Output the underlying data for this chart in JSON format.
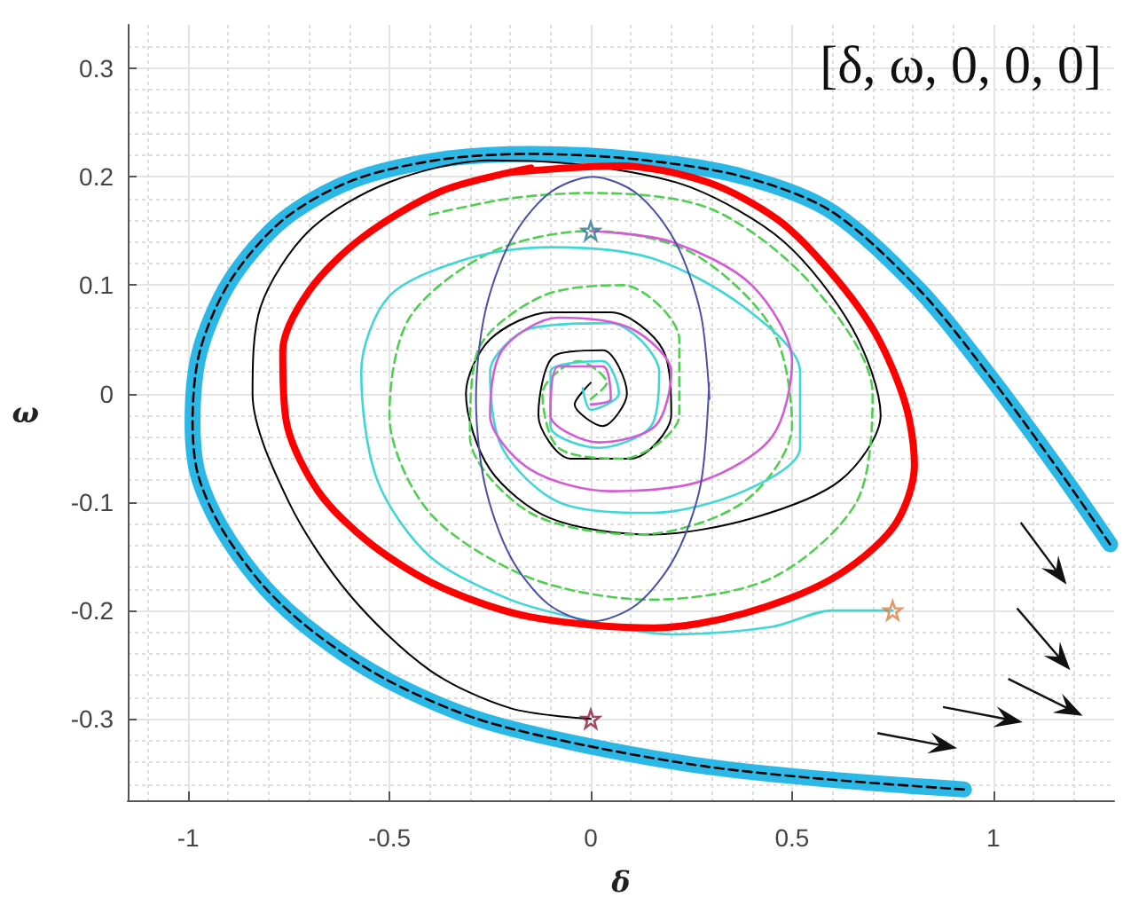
{
  "chart_data": {
    "type": "line",
    "xlabel": "δ",
    "ylabel": "ω",
    "annotations": [
      "[δ, ω, 0, 0, 0]"
    ],
    "xlim": [
      -1.15,
      1.3
    ],
    "ylim": [
      -0.375,
      0.34
    ],
    "xticks": [
      -1,
      -0.5,
      0,
      0.5,
      1
    ],
    "yticks": [
      -0.3,
      -0.2,
      -0.1,
      0,
      0.1,
      0.2,
      0.3
    ],
    "grid": true,
    "marker": "none",
    "series": [
      {
        "color": "#2bb8e6",
        "x": [
          1.29,
          1.169,
          0.993,
          0.818,
          0.598,
          0.378,
          0.114,
          -0.149,
          -0.369,
          -0.589,
          -0.765,
          -0.897,
          -0.971,
          -0.989,
          -0.976,
          -0.919,
          -0.809,
          -0.677,
          -0.501,
          -0.281,
          -0.018,
          0.29,
          0.598,
          0.927
        ],
        "values": [
          -0.139,
          -0.074,
          0.015,
          0.095,
          0.168,
          0.2,
          0.216,
          0.221,
          0.216,
          0.197,
          0.16,
          0.103,
          0.039,
          -0.026,
          -0.074,
          -0.123,
          -0.179,
          -0.223,
          -0.265,
          -0.3,
          -0.324,
          -0.344,
          -0.356,
          -0.365
        ]
      },
      {
        "color": "#000000",
        "line_style": "dashed",
        "x": [
          1.29,
          1.169,
          0.993,
          0.818,
          0.598,
          0.378,
          0.114,
          -0.149,
          -0.369,
          -0.589,
          -0.765,
          -0.897,
          -0.971,
          -0.989,
          -0.976,
          -0.919,
          -0.809,
          -0.677,
          -0.501,
          -0.281,
          -0.018,
          0.29,
          0.598,
          0.927
        ],
        "values": [
          -0.139,
          -0.074,
          0.015,
          0.095,
          0.168,
          0.2,
          0.216,
          0.221,
          0.216,
          0.197,
          0.16,
          0.103,
          0.039,
          -0.026,
          -0.074,
          -0.123,
          -0.179,
          -0.223,
          -0.265,
          -0.3,
          -0.324,
          -0.344,
          -0.356,
          -0.365
        ]
      },
      {
        "color": "#000000",
        "x": [
          0,
          -0.2,
          -0.4,
          -0.6,
          -0.75,
          -0.84,
          -0.82,
          -0.7,
          -0.5,
          -0.25,
          0,
          0.25,
          0.48,
          0.65,
          0.72,
          0.62,
          0.4,
          0.15,
          -0.1,
          -0.25,
          -0.31,
          -0.25,
          -0.1,
          0.05,
          0.18,
          0.2,
          0.1,
          -0.05,
          -0.13,
          -0.09,
          0.03,
          0.09,
          0.03,
          -0.04,
          0
        ],
        "values": [
          -0.3,
          -0.29,
          -0.255,
          -0.185,
          -0.1,
          0,
          0.08,
          0.15,
          0.195,
          0.215,
          0.21,
          0.19,
          0.14,
          0.06,
          -0.02,
          -0.08,
          -0.115,
          -0.13,
          -0.115,
          -0.07,
          0,
          0.05,
          0.075,
          0.075,
          0.04,
          -0.02,
          -0.06,
          -0.06,
          -0.02,
          0.035,
          0.04,
          0,
          -0.03,
          -0.01,
          0.01
        ]
      },
      {
        "color": "#4fcf4f",
        "line_style": "dashed",
        "x": [
          -0.4,
          -0.2,
          0,
          0.3,
          0.55,
          0.7,
          0.66,
          0.45,
          0.15,
          -0.15,
          -0.4,
          -0.5,
          -0.45,
          -0.25,
          0,
          0.25,
          0.45,
          0.5,
          0.38,
          0.12,
          -0.15,
          -0.3,
          -0.28,
          -0.12,
          0.08,
          0.22,
          0.22,
          0.08,
          -0.08,
          -0.12,
          -0.03,
          0.04,
          0
        ],
        "values": [
          0.165,
          0.18,
          0.185,
          0.17,
          0.1,
          0,
          -0.1,
          -0.17,
          -0.19,
          -0.17,
          -0.11,
          -0.02,
          0.07,
          0.13,
          0.15,
          0.13,
          0.06,
          -0.03,
          -0.1,
          -0.13,
          -0.11,
          -0.04,
          0.04,
          0.09,
          0.1,
          0.05,
          -0.02,
          -0.06,
          -0.05,
          0,
          0.03,
          0.01,
          -0.005
        ]
      },
      {
        "color": "#3fd6d6",
        "x": [
          0.75,
          0.6,
          0.45,
          0.2,
          0,
          -0.2,
          -0.4,
          -0.53,
          -0.57,
          -0.5,
          -0.3,
          -0.1,
          0.15,
          0.38,
          0.52,
          0.52,
          0.38,
          0.15,
          -0.08,
          -0.22,
          -0.25,
          -0.15,
          0.05,
          0.17,
          0.15,
          0.02,
          -0.1,
          -0.1,
          0.03,
          0.07,
          0,
          -0.02
        ],
        "values": [
          -0.2,
          -0.2,
          -0.215,
          -0.222,
          -0.21,
          -0.19,
          -0.15,
          -0.08,
          0.02,
          0.09,
          0.125,
          0.135,
          0.125,
          0.08,
          0.02,
          -0.05,
          -0.09,
          -0.11,
          -0.1,
          -0.05,
          0.02,
          0.06,
          0.065,
          0.02,
          -0.03,
          -0.05,
          -0.03,
          0.02,
          0.03,
          0,
          -0.015,
          0.005
        ]
      },
      {
        "color": "#d55ad5",
        "x": [
          0,
          0.2,
          0.4,
          0.5,
          0.45,
          0.28,
          0.05,
          -0.15,
          -0.25,
          -0.22,
          -0.08,
          0.1,
          0.2,
          0.16,
          0.02,
          -0.1,
          -0.08,
          0.03,
          0.05,
          0
        ],
        "values": [
          0.15,
          0.14,
          0.1,
          0.03,
          -0.04,
          -0.08,
          -0.09,
          -0.07,
          -0.02,
          0.04,
          0.07,
          0.06,
          0.02,
          -0.03,
          -0.045,
          -0.02,
          0.025,
          0.025,
          -0.005,
          -0.01
        ]
      },
      {
        "color": "#4b4fa8",
        "x": [
          0.295,
          0.273,
          0.21,
          0.116,
          0.005,
          -0.106,
          -0.2,
          -0.263,
          -0.285,
          -0.263,
          -0.2,
          -0.106,
          0.005,
          0.116,
          0.21,
          0.273,
          0.294
        ],
        "values": [
          -0.005,
          0.074,
          0.14,
          0.184,
          0.2,
          0.184,
          0.14,
          0.074,
          -0.005,
          -0.084,
          -0.15,
          -0.194,
          -0.21,
          -0.194,
          -0.15,
          -0.084,
          0.01
        ]
      },
      {
        "color": "#ff0000",
        "x": [
          -0.149,
          -0.369,
          -0.567,
          -0.699,
          -0.765,
          -0.756,
          -0.677,
          -0.545,
          -0.369,
          -0.149,
          0.158,
          0.378,
          0.598,
          0.752,
          0.804,
          0.782,
          0.708,
          0.598,
          0.466,
          0.29,
          0.07,
          -0.2
        ],
        "values": [
          0.208,
          0.187,
          0.144,
          0.095,
          0.039,
          -0.026,
          -0.09,
          -0.139,
          -0.179,
          -0.206,
          -0.216,
          -0.203,
          -0.171,
          -0.123,
          -0.066,
          -0.01,
          0.055,
          0.111,
          0.16,
          0.195,
          0.21,
          0.204
        ]
      },
      {
        "type": "scatter",
        "marker": "star",
        "color": "#2a7a8a",
        "x": [
          0
        ],
        "values": [
          0.15
        ]
      },
      {
        "type": "scatter",
        "marker": "star",
        "color": "#e07a40",
        "x": [
          0.75
        ],
        "values": [
          -0.2
        ]
      },
      {
        "type": "scatter",
        "marker": "star",
        "color": "#8b1a3a",
        "x": [
          0
        ],
        "values": [
          -0.3
        ]
      }
    ]
  }
}
